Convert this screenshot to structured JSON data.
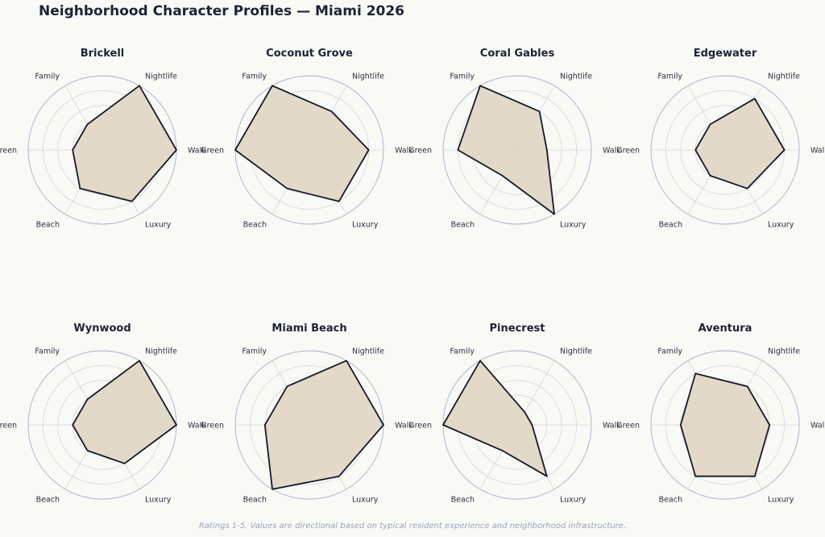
{
  "title": "Neighborhood Character Profiles — Miami 2026",
  "footnote": "Ratings 1-5. Values are directional based on typical resident experience and neighborhood infrastructure.",
  "colors": {
    "fill": "#e0d5c3",
    "stroke": "#141829",
    "grid": "#d6d6db",
    "outer_ring": "#a9aec8",
    "background": "#f9f9f6"
  },
  "chart_data": {
    "type": "radar",
    "axes": [
      "Walk",
      "Nightlife",
      "Family",
      "Green",
      "Beach",
      "Luxury"
    ],
    "rmax": 5,
    "grid": true,
    "series": [
      {
        "name": "Brickell",
        "values": [
          5,
          5,
          2,
          2,
          3,
          4
        ]
      },
      {
        "name": "Coconut Grove",
        "values": [
          4,
          3,
          5,
          5,
          3,
          4
        ]
      },
      {
        "name": "Coral Gables",
        "values": [
          2,
          3,
          5,
          4,
          2,
          5
        ]
      },
      {
        "name": "Edgewater",
        "values": [
          4,
          4,
          2,
          2,
          2,
          3
        ]
      },
      {
        "name": "Wynwood",
        "values": [
          5,
          5,
          2,
          2,
          2,
          3
        ]
      },
      {
        "name": "Miami Beach",
        "values": [
          5,
          5,
          3,
          3,
          5,
          4
        ]
      },
      {
        "name": "Pinecrest",
        "values": [
          1,
          1,
          5,
          5,
          2,
          4
        ]
      },
      {
        "name": "Aventura",
        "values": [
          3,
          3,
          4,
          3,
          4,
          4
        ]
      }
    ]
  }
}
